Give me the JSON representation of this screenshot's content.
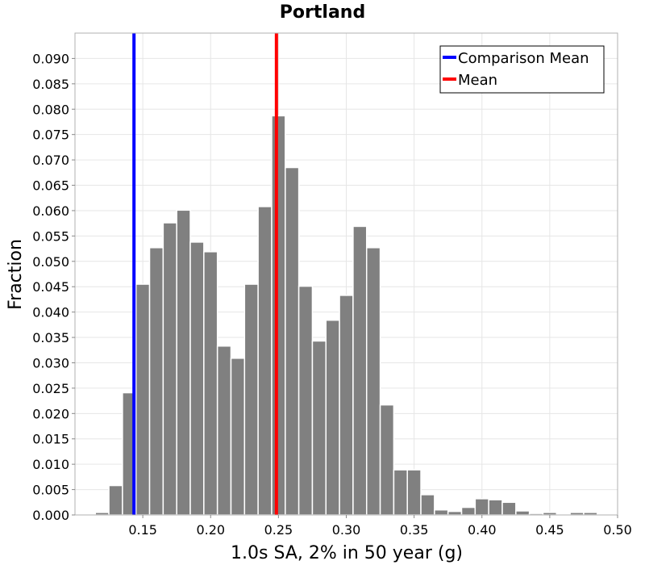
{
  "chart_data": {
    "type": "bar",
    "title": "Portland",
    "xlabel": "1.0s SA, 2% in 50 year (g)",
    "ylabel": "Fraction",
    "xlim": [
      0.1,
      0.5
    ],
    "ylim": [
      0.0,
      0.095
    ],
    "x_ticks": [
      "0.15",
      "0.20",
      "0.25",
      "0.30",
      "0.35",
      "0.40",
      "0.45",
      "0.50"
    ],
    "y_ticks": [
      "0.000",
      "0.005",
      "0.010",
      "0.015",
      "0.020",
      "0.025",
      "0.030",
      "0.035",
      "0.040",
      "0.045",
      "0.050",
      "0.055",
      "0.060",
      "0.065",
      "0.070",
      "0.075",
      "0.080",
      "0.085",
      "0.090"
    ],
    "grid": true,
    "bar_color": "#808080",
    "bin_width": 0.01,
    "bins": [
      {
        "x": 0.12,
        "y": 0.0005
      },
      {
        "x": 0.13,
        "y": 0.0058
      },
      {
        "x": 0.14,
        "y": 0.0241
      },
      {
        "x": 0.15,
        "y": 0.0455
      },
      {
        "x": 0.16,
        "y": 0.0527
      },
      {
        "x": 0.17,
        "y": 0.0576
      },
      {
        "x": 0.18,
        "y": 0.0601
      },
      {
        "x": 0.19,
        "y": 0.0538
      },
      {
        "x": 0.2,
        "y": 0.0519
      },
      {
        "x": 0.21,
        "y": 0.0333
      },
      {
        "x": 0.22,
        "y": 0.0309
      },
      {
        "x": 0.23,
        "y": 0.0455
      },
      {
        "x": 0.24,
        "y": 0.0608
      },
      {
        "x": 0.25,
        "y": 0.0787
      },
      {
        "x": 0.26,
        "y": 0.0685
      },
      {
        "x": 0.27,
        "y": 0.0451
      },
      {
        "x": 0.28,
        "y": 0.0343
      },
      {
        "x": 0.29,
        "y": 0.0384
      },
      {
        "x": 0.3,
        "y": 0.0433
      },
      {
        "x": 0.31,
        "y": 0.0569
      },
      {
        "x": 0.32,
        "y": 0.0527
      },
      {
        "x": 0.33,
        "y": 0.0217
      },
      {
        "x": 0.34,
        "y": 0.0089
      },
      {
        "x": 0.35,
        "y": 0.0089
      },
      {
        "x": 0.36,
        "y": 0.004
      },
      {
        "x": 0.37,
        "y": 0.001
      },
      {
        "x": 0.38,
        "y": 0.0007
      },
      {
        "x": 0.39,
        "y": 0.0015
      },
      {
        "x": 0.4,
        "y": 0.0032
      },
      {
        "x": 0.41,
        "y": 0.003
      },
      {
        "x": 0.42,
        "y": 0.0025
      },
      {
        "x": 0.43,
        "y": 0.0008
      },
      {
        "x": 0.44,
        "y": 0.0003
      },
      {
        "x": 0.45,
        "y": 0.0005
      },
      {
        "x": 0.46,
        "y": 0.0
      },
      {
        "x": 0.47,
        "y": 0.0005
      },
      {
        "x": 0.48,
        "y": 0.0005
      }
    ],
    "vlines": [
      {
        "name": "Comparison Mean",
        "x": 0.1435,
        "color": "#0000ff"
      },
      {
        "name": "Mean",
        "x": 0.2485,
        "color": "#ff0000"
      }
    ],
    "legend": {
      "placement": "top-right",
      "entries": [
        {
          "label": "Comparison Mean",
          "color": "#0000ff"
        },
        {
          "label": "Mean",
          "color": "#ff0000"
        }
      ]
    }
  }
}
